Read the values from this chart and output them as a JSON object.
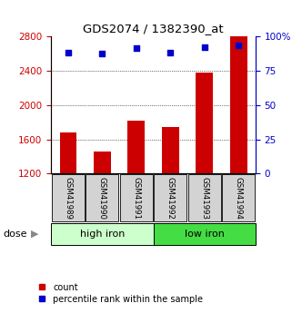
{
  "title": "GDS2074 / 1382390_at",
  "categories": [
    "GSM41989",
    "GSM41990",
    "GSM41991",
    "GSM41992",
    "GSM41993",
    "GSM41994"
  ],
  "bar_values": [
    1680,
    1460,
    1820,
    1740,
    2380,
    2800
  ],
  "scatter_values": [
    88,
    87,
    91,
    88,
    92,
    93
  ],
  "ylim_left": [
    1200,
    2800
  ],
  "ylim_right": [
    0,
    100
  ],
  "yticks_left": [
    1200,
    1600,
    2000,
    2400,
    2800
  ],
  "yticks_right": [
    0,
    25,
    50,
    75,
    100
  ],
  "ytick_labels_right": [
    "0",
    "25",
    "50",
    "75",
    "100%"
  ],
  "bar_color": "#cc0000",
  "scatter_color": "#0000cc",
  "group1_label": "high iron",
  "group2_label": "low iron",
  "group1_indices": [
    0,
    1,
    2
  ],
  "group2_indices": [
    3,
    4,
    5
  ],
  "group1_bg": "#ccffcc",
  "group2_bg": "#44dd44",
  "dose_label": "dose",
  "legend_count": "count",
  "legend_percentile": "percentile rank within the sample",
  "bar_baseline": 1200,
  "grid_ticks": [
    1600,
    2000,
    2400
  ]
}
